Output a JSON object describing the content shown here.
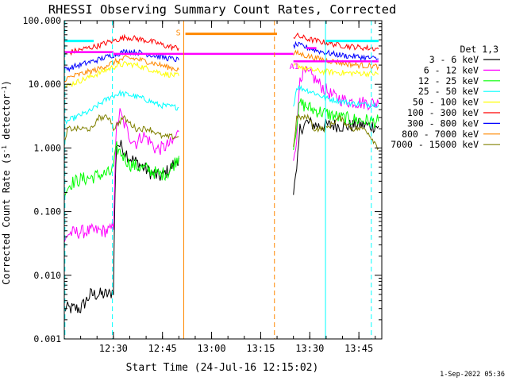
{
  "chart_data": {
    "type": "line",
    "title": "RHESSI Observing Summary Count Rates, Corrected",
    "xlabel": "Start Time (24-Jul-16 12:15:02)",
    "ylabel_parts": [
      "Corrected Count Rate (s",
      "-1",
      " detector",
      "-1",
      ")"
    ],
    "yscale": "log",
    "ylim": [
      0.001,
      100
    ],
    "xlim_minutes_after_start": [
      0,
      97
    ],
    "x_ticks": [
      {
        "label": "12:30",
        "min": 15
      },
      {
        "label": "12:45",
        "min": 30
      },
      {
        "label": "13:00",
        "min": 45
      },
      {
        "label": "13:15",
        "min": 60
      },
      {
        "label": "13:30",
        "min": 75
      },
      {
        "label": "13:45",
        "min": 90
      }
    ],
    "y_ticks": [
      {
        "label": "100.000",
        "v": 100
      },
      {
        "label": "10.000",
        "v": 10
      },
      {
        "label": "1.000",
        "v": 1
      },
      {
        "label": "0.100",
        "v": 0.1
      },
      {
        "label": "0.010",
        "v": 0.01
      },
      {
        "label": "0.001",
        "v": 0.001
      }
    ],
    "legend_title": "Det 1,3",
    "legend_placement": "right, outside plot",
    "series": [
      {
        "name": "3 - 6 keV",
        "color": "#000000",
        "segments": [
          [
            [
              0,
              0.003
            ],
            [
              2,
              0.003
            ],
            [
              5,
              0.003
            ],
            [
              8,
              0.005
            ],
            [
              11,
              0.005
            ],
            [
              14,
              0.005
            ],
            [
              15,
              0.006
            ],
            [
              15.5,
              0.2
            ],
            [
              16,
              1.2
            ],
            [
              18,
              1.0
            ],
            [
              20,
              0.7
            ],
            [
              23,
              0.55
            ],
            [
              26,
              0.42
            ],
            [
              29,
              0.35
            ],
            [
              32,
              0.45
            ],
            [
              35,
              0.7
            ]
          ],
          [
            [
              70,
              0.2
            ],
            [
              71,
              0.4
            ],
            [
              72,
              2.0
            ],
            [
              74,
              2.5
            ],
            [
              78,
              2.2
            ],
            [
              82,
              2.3
            ],
            [
              86,
              2.2
            ],
            [
              90,
              2.3
            ],
            [
              96,
              2.2
            ]
          ]
        ]
      },
      {
        "name": "6 - 12 keV",
        "color": "#ff00ff",
        "segments": [
          [
            [
              0,
              0.03
            ],
            [
              1,
              0.045
            ],
            [
              5,
              0.048
            ],
            [
              10,
              0.05
            ],
            [
              14,
              0.05
            ],
            [
              15,
              0.06
            ],
            [
              15.5,
              0.5
            ],
            [
              16,
              2.2
            ],
            [
              17,
              3.5
            ],
            [
              18,
              2.6
            ],
            [
              20,
              1.5
            ],
            [
              22,
              1.2
            ],
            [
              24,
              1.6
            ],
            [
              26,
              1.3
            ],
            [
              28,
              0.95
            ],
            [
              30,
              1.0
            ],
            [
              33,
              1.2
            ],
            [
              35,
              1.8
            ]
          ],
          [
            [
              70,
              0.7
            ],
            [
              71,
              1.5
            ],
            [
              72,
              14
            ],
            [
              74,
              15
            ],
            [
              76,
              13
            ],
            [
              78,
              10
            ],
            [
              80,
              8
            ],
            [
              82,
              6.5
            ],
            [
              84,
              6
            ],
            [
              86,
              5.5
            ],
            [
              90,
              5.2
            ],
            [
              96,
              5
            ]
          ]
        ]
      },
      {
        "name": "12 - 25 keV",
        "color": "#00ff00",
        "segments": [
          [
            [
              0,
              0.2
            ],
            [
              2,
              0.28
            ],
            [
              5,
              0.32
            ],
            [
              8,
              0.34
            ],
            [
              11,
              0.38
            ],
            [
              14,
              0.4
            ],
            [
              15,
              0.5
            ],
            [
              16,
              1.0
            ],
            [
              18,
              0.75
            ],
            [
              20,
              0.55
            ],
            [
              23,
              0.5
            ],
            [
              26,
              0.45
            ],
            [
              29,
              0.38
            ],
            [
              32,
              0.42
            ],
            [
              35,
              0.75
            ]
          ],
          [
            [
              70,
              1.0
            ],
            [
              71,
              2.5
            ],
            [
              72,
              5
            ],
            [
              76,
              4
            ],
            [
              80,
              3.5
            ],
            [
              84,
              3.0
            ],
            [
              88,
              2.8
            ],
            [
              92,
              2.7
            ],
            [
              96,
              2.6
            ]
          ]
        ]
      },
      {
        "name": "25 - 50 keV",
        "color": "#00ffff",
        "segments": [
          [
            [
              0,
              2.5
            ],
            [
              2,
              2.8
            ],
            [
              5,
              3.3
            ],
            [
              8,
              3.8
            ],
            [
              11,
              5.0
            ],
            [
              14,
              6.3
            ],
            [
              17,
              7.2
            ],
            [
              20,
              6.8
            ],
            [
              23,
              6.2
            ],
            [
              26,
              5.5
            ],
            [
              29,
              4.7
            ],
            [
              32,
              4.5
            ],
            [
              35,
              4.3
            ]
          ],
          [
            [
              70,
              4.5
            ],
            [
              71,
              9
            ],
            [
              73,
              8.5
            ],
            [
              76,
              7.5
            ],
            [
              80,
              6
            ],
            [
              84,
              5.5
            ],
            [
              88,
              5.0
            ],
            [
              92,
              4.8
            ],
            [
              96,
              4.8
            ]
          ]
        ]
      },
      {
        "name": "50 - 100 keV",
        "color": "#ffff00",
        "segments": [
          [
            [
              0,
              9
            ],
            [
              3,
              10.5
            ],
            [
              6,
              12
            ],
            [
              10,
              14.5
            ],
            [
              13,
              17
            ],
            [
              16,
              19.5
            ],
            [
              19,
              21
            ],
            [
              22,
              20
            ],
            [
              25,
              18
            ],
            [
              28,
              16
            ],
            [
              31,
              14.5
            ],
            [
              35,
              13.5
            ]
          ],
          [
            [
              70,
              19
            ],
            [
              71,
              20
            ],
            [
              74,
              17.5
            ],
            [
              78,
              16
            ],
            [
              82,
              15.5
            ],
            [
              86,
              15
            ],
            [
              90,
              15
            ],
            [
              96,
              14.5
            ]
          ]
        ]
      },
      {
        "name": "100 - 300 keV",
        "color": "#ff0000",
        "segments": [
          [
            [
              0,
              30
            ],
            [
              3,
              33
            ],
            [
              6,
              36
            ],
            [
              10,
              40
            ],
            [
              13,
              45
            ],
            [
              16,
              50
            ],
            [
              19,
              55
            ],
            [
              22,
              52
            ],
            [
              25,
              49
            ],
            [
              28,
              45
            ],
            [
              31,
              40
            ],
            [
              35,
              37
            ]
          ],
          [
            [
              70,
              55
            ],
            [
              71,
              58
            ],
            [
              74,
              52
            ],
            [
              78,
              47
            ],
            [
              82,
              43
            ],
            [
              86,
              40
            ],
            [
              90,
              38
            ],
            [
              96,
              36
            ]
          ]
        ]
      },
      {
        "name": "300 - 800 keV",
        "color": "#0000ff",
        "segments": [
          [
            [
              0,
              17
            ],
            [
              3,
              19
            ],
            [
              6,
              21
            ],
            [
              10,
              24
            ],
            [
              13,
              27
            ],
            [
              16,
              30
            ],
            [
              19,
              33
            ],
            [
              22,
              32
            ],
            [
              25,
              30
            ],
            [
              28,
              28
            ],
            [
              31,
              26
            ],
            [
              35,
              24
            ]
          ],
          [
            [
              70,
              40
            ],
            [
              71,
              42
            ],
            [
              74,
              38
            ],
            [
              78,
              33
            ],
            [
              82,
              30
            ],
            [
              86,
              28
            ],
            [
              90,
              27
            ],
            [
              96,
              25
            ]
          ]
        ]
      },
      {
        "name": "800 - 7000 keV",
        "color": "#ff8800",
        "segments": [
          [
            [
              0,
              12
            ],
            [
              3,
              13.5
            ],
            [
              6,
              15
            ],
            [
              10,
              17
            ],
            [
              13,
              20
            ],
            [
              16,
              23
            ],
            [
              19,
              26
            ],
            [
              22,
              25
            ],
            [
              25,
              23
            ],
            [
              28,
              21
            ],
            [
              31,
              19
            ],
            [
              35,
              17
            ]
          ],
          [
            [
              70,
              30
            ],
            [
              71,
              31
            ],
            [
              74,
              28
            ],
            [
              78,
              25
            ],
            [
              82,
              23
            ],
            [
              86,
              21
            ],
            [
              90,
              20
            ],
            [
              96,
              19
            ]
          ]
        ]
      },
      {
        "name": "7000 - 15000 keV",
        "color": "#808000",
        "segments": [
          [
            [
              0,
              1.0
            ],
            [
              1,
              2.0
            ],
            [
              5,
              2.0
            ],
            [
              9,
              2.0
            ],
            [
              10,
              3.0
            ],
            [
              14,
              3.0
            ],
            [
              15,
              2.0
            ],
            [
              18,
              3.0
            ],
            [
              22,
              2.0
            ],
            [
              26,
              2.0
            ],
            [
              30,
              1.5
            ],
            [
              35,
              1.5
            ]
          ],
          [
            [
              70,
              1.0
            ],
            [
              71,
              3.0
            ],
            [
              75,
              3.0
            ],
            [
              76,
              2.0
            ],
            [
              80,
              2.0
            ],
            [
              84,
              3.0
            ],
            [
              88,
              2.0
            ],
            [
              92,
              2.0
            ],
            [
              96,
              1.0
            ]
          ]
        ]
      }
    ],
    "attenuator_state": [
      {
        "label": "",
        "x0": 0,
        "x1": 15,
        "v": 32,
        "color": "#ff00ff"
      },
      {
        "label": "",
        "x0": 15,
        "x1": 70,
        "v": 30,
        "color": "#ff00ff"
      },
      {
        "label": "A1",
        "x0": 70,
        "x1": 96,
        "v": 23,
        "color": "#ff00ff"
      },
      {
        "label": "",
        "x0": 74,
        "x1": 77,
        "v": 37,
        "color": "#ff00ff"
      }
    ],
    "annotation_bars": [
      {
        "label": "",
        "x0": 0,
        "x1": 9,
        "v": 48,
        "color": "#00ffff"
      },
      {
        "label": "",
        "x0": 80,
        "x1": 96,
        "v": 48,
        "color": "#00ffff"
      },
      {
        "label": "S",
        "x0": 37,
        "x1": 65,
        "v": 62,
        "color": "#ff8800"
      }
    ],
    "vertical_lines": [
      {
        "x": 0.2,
        "color": "#00ffff",
        "dashed": true
      },
      {
        "x": 14.7,
        "color": "#00ffff",
        "dashed": true
      },
      {
        "x": 36.5,
        "color": "#ff8800",
        "dashed": false
      },
      {
        "x": 64.2,
        "color": "#ff8800",
        "dashed": true
      },
      {
        "x": 79.8,
        "color": "#00ffff",
        "dashed": false
      },
      {
        "x": 93.8,
        "color": "#00ffff",
        "dashed": true
      }
    ],
    "gaps": [
      [
        35.5,
        70
      ]
    ]
  },
  "footer": {
    "timestamp": "1-Sep-2022 05:36"
  }
}
